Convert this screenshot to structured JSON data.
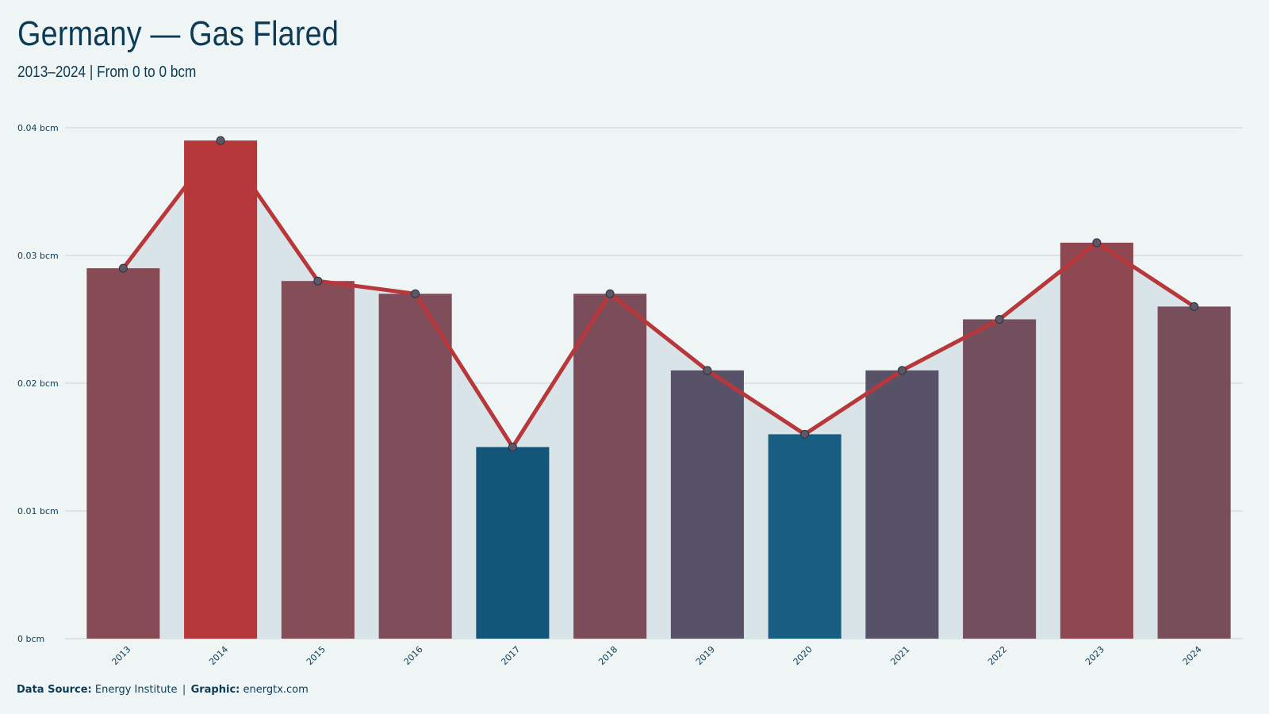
{
  "header": {
    "title": "Germany — Gas Flared",
    "subtitle": "2013–2024 | From 0 to 0 bcm"
  },
  "footer": {
    "source_label": "Data Source:",
    "source_value": "Energy Institute",
    "separator": "|",
    "graphic_label": "Graphic:",
    "graphic_value": "energtx.com"
  },
  "colors": {
    "background": "#eff5f5",
    "area_fill": "#d9e4e8",
    "line": "#b7373a",
    "marker": "#5c5868",
    "gridline": "#c8d2d4",
    "text": "#0d3b55"
  },
  "chart_data": {
    "type": "bar",
    "title": "Germany — Gas Flared",
    "subtitle": "2013–2024 | From 0 to 0 bcm",
    "xlabel": "",
    "ylabel": "",
    "categories": [
      "2013",
      "2014",
      "2015",
      "2016",
      "2017",
      "2018",
      "2019",
      "2020",
      "2021",
      "2022",
      "2023",
      "2024"
    ],
    "values": [
      0.029,
      0.039,
      0.028,
      0.027,
      0.015,
      0.027,
      0.021,
      0.016,
      0.021,
      0.025,
      0.031,
      0.026
    ],
    "bar_colors": [
      "#874b55",
      "#b5373a",
      "#844d57",
      "#7e4d59",
      "#12577a",
      "#7b4d5a",
      "#585268",
      "#175e82",
      "#585268",
      "#734e5d",
      "#8d4851",
      "#784e5b"
    ],
    "overlay_line": true,
    "ylim": [
      0,
      0.04
    ],
    "yticks": [
      0,
      0.01,
      0.02,
      0.03,
      0.04
    ],
    "ytick_labels": [
      "0 bcm",
      "0.01 bcm",
      "0.02 bcm",
      "0.03 bcm",
      "0.04 bcm"
    ],
    "grid": true
  }
}
